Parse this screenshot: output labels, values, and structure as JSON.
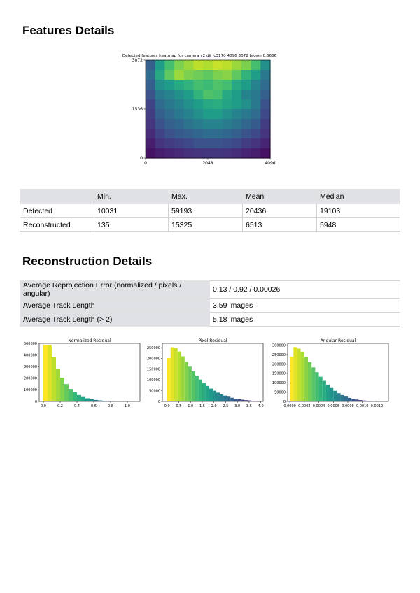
{
  "features": {
    "title": "Features Details",
    "heatmap": {
      "title": "Detected features heatmap for camera v2 dji fc3170 4096 3072 brown 0.6666",
      "x_ticks": [
        "0",
        "2048",
        "4096"
      ],
      "y_ticks": [
        "0",
        "1536",
        "3072"
      ]
    },
    "table": {
      "headers": [
        "",
        "Min.",
        "Max.",
        "Mean",
        "Median"
      ],
      "rows": [
        [
          "Detected",
          "10031",
          "59193",
          "20436",
          "19103"
        ],
        [
          "Reconstructed",
          "135",
          "15325",
          "6513",
          "5948"
        ]
      ]
    }
  },
  "reconstruction": {
    "title": "Reconstruction Details",
    "rows": [
      {
        "label": "Average Reprojection Error (normalized / pixels / angular)",
        "value": "0.13 / 0.92 / 0.00026"
      },
      {
        "label": "Average Track Length",
        "value": "3.59 images"
      },
      {
        "label": "Average Track Length (> 2)",
        "value": "5.18 images"
      }
    ]
  },
  "chart_data": [
    {
      "type": "heatmap",
      "title": "Detected features heatmap for camera v2 dji fc3170 4096 3072 brown 0.6666",
      "xlim": [
        0,
        4096
      ],
      "ylim": [
        0,
        3072
      ],
      "x_ticks": [
        "0",
        "2048",
        "4096"
      ],
      "y_ticks": [
        "0",
        "1536",
        "3072"
      ],
      "rows_top_to_bottom": [
        [
          0.3,
          0.55,
          0.7,
          0.8,
          0.85,
          0.9,
          0.88,
          0.92,
          0.9,
          0.85,
          0.8,
          0.7,
          0.5
        ],
        [
          0.35,
          0.6,
          0.75,
          0.85,
          0.8,
          0.78,
          0.75,
          0.8,
          0.82,
          0.75,
          0.65,
          0.55,
          0.4
        ],
        [
          0.3,
          0.5,
          0.55,
          0.6,
          0.65,
          0.7,
          0.68,
          0.72,
          0.7,
          0.6,
          0.55,
          0.45,
          0.35
        ],
        [
          0.25,
          0.4,
          0.45,
          0.5,
          0.55,
          0.65,
          0.72,
          0.7,
          0.6,
          0.55,
          0.45,
          0.4,
          0.3
        ],
        [
          0.2,
          0.35,
          0.4,
          0.45,
          0.5,
          0.55,
          0.6,
          0.62,
          0.58,
          0.55,
          0.5,
          0.4,
          0.25
        ],
        [
          0.18,
          0.3,
          0.35,
          0.4,
          0.45,
          0.5,
          0.55,
          0.55,
          0.5,
          0.45,
          0.4,
          0.35,
          0.22
        ],
        [
          0.15,
          0.25,
          0.3,
          0.33,
          0.38,
          0.42,
          0.45,
          0.45,
          0.42,
          0.38,
          0.33,
          0.28,
          0.18
        ],
        [
          0.12,
          0.2,
          0.25,
          0.28,
          0.3,
          0.33,
          0.35,
          0.35,
          0.33,
          0.3,
          0.26,
          0.22,
          0.15
        ],
        [
          0.08,
          0.15,
          0.18,
          0.2,
          0.22,
          0.25,
          0.26,
          0.26,
          0.24,
          0.22,
          0.18,
          0.15,
          0.1
        ],
        [
          0.05,
          0.08,
          0.1,
          0.12,
          0.14,
          0.15,
          0.16,
          0.16,
          0.15,
          0.13,
          0.1,
          0.08,
          0.05
        ]
      ]
    },
    {
      "type": "bar",
      "title": "Normalized Residual",
      "xlim": [
        -0.05,
        1.15
      ],
      "ylim": [
        0,
        500000
      ],
      "x_ticks": [
        "0.0",
        "0.2",
        "0.4",
        "0.6",
        "0.8",
        "1.0"
      ],
      "x_tick_values": [
        0.0,
        0.2,
        0.4,
        0.6,
        0.8,
        1.0
      ],
      "y_ticks": [
        "0",
        "100000",
        "200000",
        "300000",
        "400000",
        "500000"
      ],
      "y_tick_values": [
        0,
        100000,
        200000,
        300000,
        400000,
        500000
      ],
      "bin_start": 0.0,
      "bin_width": 0.05,
      "values": [
        485000,
        485000,
        380000,
        280000,
        205000,
        150000,
        108000,
        78000,
        55000,
        38000,
        27000,
        19000,
        13000,
        9000,
        6000,
        4000,
        2500,
        1500,
        1000,
        600,
        300,
        200
      ]
    },
    {
      "type": "bar",
      "title": "Pixel Residual",
      "xlim": [
        -0.2,
        4.1
      ],
      "ylim": [
        0,
        270000
      ],
      "x_ticks": [
        "0.0",
        "0.5",
        "1.0",
        "1.5",
        "2.0",
        "2.5",
        "3.0",
        "3.5",
        "4.0"
      ],
      "x_tick_values": [
        0.0,
        0.5,
        1.0,
        1.5,
        2.0,
        2.5,
        3.0,
        3.5,
        4.0
      ],
      "y_ticks": [
        "0",
        "50000",
        "100000",
        "150000",
        "200000",
        "250000"
      ],
      "y_tick_values": [
        0,
        50000,
        100000,
        150000,
        200000,
        250000
      ],
      "bin_start": 0.0,
      "bin_width": 0.15,
      "values": [
        202000,
        252000,
        248000,
        232000,
        210000,
        185000,
        162000,
        140000,
        120000,
        102000,
        86000,
        72000,
        60000,
        50000,
        41000,
        33000,
        27000,
        22000,
        17000,
        13000,
        10000,
        8000,
        6000,
        4500,
        3000,
        2000,
        1000
      ]
    },
    {
      "type": "bar",
      "title": "Angular Residual",
      "xlim": [
        -3e-05,
        0.00136
      ],
      "ylim": [
        0,
        310000
      ],
      "x_ticks": [
        "0.0000",
        "0.0002",
        "0.0004",
        "0.0006",
        "0.0008",
        "0.0010",
        "0.0012"
      ],
      "x_tick_values": [
        0.0,
        0.0002,
        0.0004,
        0.0006,
        0.0008,
        0.001,
        0.0012
      ],
      "y_ticks": [
        "0",
        "50000",
        "100000",
        "150000",
        "200000",
        "250000",
        "300000"
      ],
      "y_tick_values": [
        0,
        50000,
        100000,
        150000,
        200000,
        250000,
        300000
      ],
      "bin_start": 0.0,
      "bin_width": 5e-05,
      "values": [
        238000,
        290000,
        282000,
        264000,
        238000,
        210000,
        182000,
        156000,
        132000,
        110000,
        90000,
        72000,
        57000,
        44000,
        34000,
        26000,
        19000,
        14000,
        10000,
        7000,
        5000,
        3000,
        2000,
        1000
      ]
    }
  ]
}
